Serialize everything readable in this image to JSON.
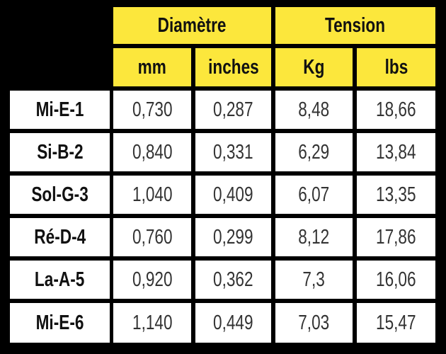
{
  "header": {
    "groups": [
      "Diamètre",
      "Tension"
    ],
    "units": [
      "mm",
      "inches",
      "Kg",
      "lbs"
    ]
  },
  "table": {
    "rows": [
      [
        "Mi-E-1",
        "0,730",
        "0,287",
        "8,48",
        "18,66"
      ],
      [
        "Si-B-2",
        "0,840",
        "0,331",
        "6,29",
        "13,84"
      ],
      [
        "Sol-G-3",
        "1,040",
        "0,409",
        "6,07",
        "13,35"
      ],
      [
        "Ré-D-4",
        "0,760",
        "0,299",
        "8,12",
        "17,86"
      ],
      [
        "La-A-5",
        "0,920",
        "0,362",
        "7,3",
        "16,06"
      ],
      [
        "Mi-E-6",
        "1,140",
        "0,449",
        "7,03",
        "15,47"
      ]
    ]
  }
}
